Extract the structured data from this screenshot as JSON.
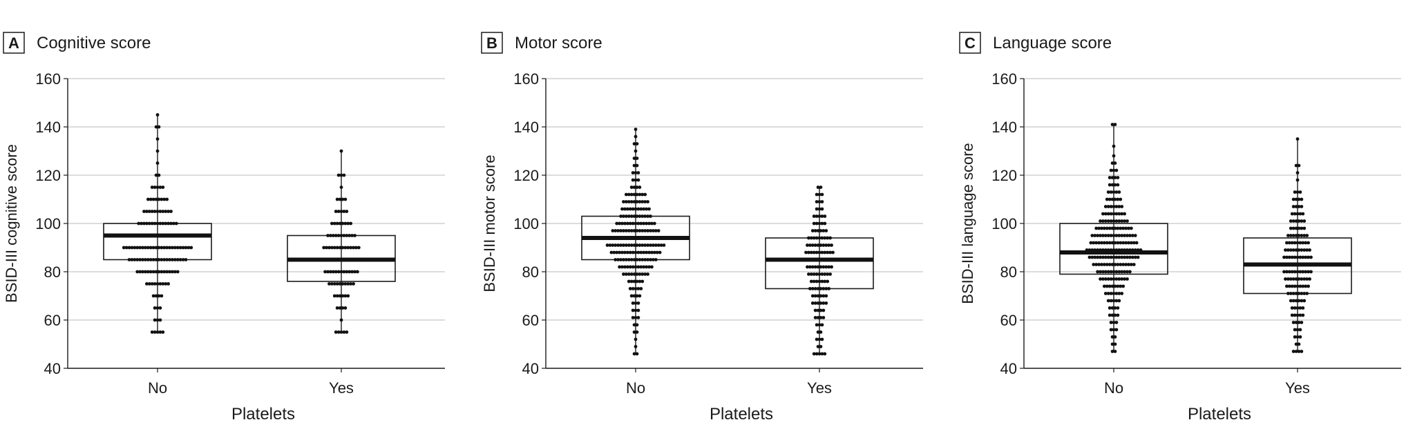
{
  "chart_data": [
    {
      "type": "box-dot",
      "panel_letter": "A",
      "title": "Cognitive score",
      "xlabel": "Platelets",
      "ylabel": "BSID-III cognitive score",
      "categories": [
        "No",
        "Yes"
      ],
      "ylim": [
        40,
        160
      ],
      "yticks": [
        40,
        60,
        80,
        100,
        120,
        140,
        160
      ],
      "grid": true,
      "boxes": [
        {
          "category": "No",
          "whisker_low": 55,
          "q1": 85,
          "median": 95,
          "q3": 100,
          "whisker_high": 145
        },
        {
          "category": "Yes",
          "whisker_low": 55,
          "q1": 76,
          "median": 85,
          "q3": 95,
          "whisker_high": 130
        }
      ],
      "distributions": [
        {
          "category": "No",
          "bins": [
            [
              55,
              5
            ],
            [
              60,
              3
            ],
            [
              65,
              3
            ],
            [
              70,
              4
            ],
            [
              75,
              9
            ],
            [
              80,
              16
            ],
            [
              85,
              22
            ],
            [
              90,
              26
            ],
            [
              95,
              23
            ],
            [
              100,
              15
            ],
            [
              105,
              11
            ],
            [
              110,
              8
            ],
            [
              115,
              5
            ],
            [
              120,
              2
            ],
            [
              125,
              1
            ],
            [
              130,
              1
            ],
            [
              135,
              1
            ],
            [
              140,
              2
            ],
            [
              145,
              1
            ]
          ]
        },
        {
          "category": "Yes",
          "bins": [
            [
              55,
              5
            ],
            [
              60,
              1
            ],
            [
              65,
              4
            ],
            [
              70,
              6
            ],
            [
              75,
              10
            ],
            [
              80,
              13
            ],
            [
              85,
              18
            ],
            [
              90,
              14
            ],
            [
              95,
              11
            ],
            [
              100,
              8
            ],
            [
              105,
              5
            ],
            [
              110,
              4
            ],
            [
              115,
              1
            ],
            [
              120,
              3
            ],
            [
              130,
              1
            ]
          ]
        }
      ]
    },
    {
      "type": "box-dot",
      "panel_letter": "B",
      "title": "Motor score",
      "xlabel": "Platelets",
      "ylabel": "BSID-III motor score",
      "categories": [
        "No",
        "Yes"
      ],
      "ylim": [
        40,
        160
      ],
      "yticks": [
        40,
        60,
        80,
        100,
        120,
        140,
        160
      ],
      "grid": true,
      "boxes": [
        {
          "category": "No",
          "whisker_low": 46,
          "q1": 85,
          "median": 94,
          "q3": 103,
          "whisker_high": 139
        },
        {
          "category": "Yes",
          "whisker_low": 46,
          "q1": 73,
          "median": 85,
          "q3": 94,
          "whisker_high": 115
        }
      ],
      "distributions": [
        {
          "category": "No",
          "bins": [
            [
              46,
              2
            ],
            [
              49,
              1
            ],
            [
              52,
              1
            ],
            [
              55,
              2
            ],
            [
              58,
              2
            ],
            [
              61,
              3
            ],
            [
              64,
              3
            ],
            [
              67,
              3
            ],
            [
              70,
              4
            ],
            [
              73,
              5
            ],
            [
              76,
              6
            ],
            [
              79,
              10
            ],
            [
              82,
              13
            ],
            [
              85,
              16
            ],
            [
              88,
              19
            ],
            [
              91,
              22
            ],
            [
              94,
              20
            ],
            [
              97,
              18
            ],
            [
              100,
              15
            ],
            [
              103,
              12
            ],
            [
              106,
              11
            ],
            [
              109,
              10
            ],
            [
              112,
              8
            ],
            [
              115,
              4
            ],
            [
              118,
              3
            ],
            [
              121,
              3
            ],
            [
              124,
              2
            ],
            [
              127,
              2
            ],
            [
              130,
              1
            ],
            [
              133,
              2
            ],
            [
              136,
              1
            ],
            [
              139,
              1
            ]
          ]
        },
        {
          "category": "Yes",
          "bins": [
            [
              46,
              5
            ],
            [
              49,
              2
            ],
            [
              52,
              3
            ],
            [
              55,
              2
            ],
            [
              58,
              3
            ],
            [
              61,
              4
            ],
            [
              64,
              4
            ],
            [
              67,
              6
            ],
            [
              70,
              6
            ],
            [
              73,
              8
            ],
            [
              76,
              7
            ],
            [
              79,
              9
            ],
            [
              82,
              10
            ],
            [
              85,
              12
            ],
            [
              88,
              11
            ],
            [
              91,
              10
            ],
            [
              94,
              9
            ],
            [
              97,
              6
            ],
            [
              100,
              5
            ],
            [
              103,
              5
            ],
            [
              106,
              3
            ],
            [
              109,
              3
            ],
            [
              112,
              3
            ],
            [
              115,
              2
            ]
          ]
        }
      ]
    },
    {
      "type": "box-dot",
      "panel_letter": "C",
      "title": "Language score",
      "xlabel": "Platelets",
      "ylabel": "BSID-III language score",
      "categories": [
        "No",
        "Yes"
      ],
      "ylim": [
        40,
        160
      ],
      "yticks": [
        40,
        60,
        80,
        100,
        120,
        140,
        160
      ],
      "grid": true,
      "boxes": [
        {
          "category": "No",
          "whisker_low": 47,
          "q1": 79,
          "median": 88,
          "q3": 100,
          "whisker_high": 141
        },
        {
          "category": "Yes",
          "whisker_low": 47,
          "q1": 71,
          "median": 83,
          "q3": 94,
          "whisker_high": 135
        }
      ],
      "distributions": [
        {
          "category": "No",
          "bins": [
            [
              47,
              2
            ],
            [
              50,
              2
            ],
            [
              53,
              2
            ],
            [
              56,
              3
            ],
            [
              59,
              3
            ],
            [
              62,
              4
            ],
            [
              65,
              4
            ],
            [
              68,
              5
            ],
            [
              71,
              7
            ],
            [
              74,
              8
            ],
            [
              77,
              11
            ],
            [
              80,
              13
            ],
            [
              83,
              16
            ],
            [
              86,
              19
            ],
            [
              89,
              21
            ],
            [
              92,
              18
            ],
            [
              95,
              17
            ],
            [
              98,
              14
            ],
            [
              101,
              11
            ],
            [
              104,
              9
            ],
            [
              107,
              7
            ],
            [
              110,
              6
            ],
            [
              113,
              5
            ],
            [
              116,
              4
            ],
            [
              119,
              4
            ],
            [
              122,
              3
            ],
            [
              125,
              2
            ],
            [
              128,
              1
            ],
            [
              132,
              1
            ],
            [
              141,
              2
            ]
          ]
        },
        {
          "category": "Yes",
          "bins": [
            [
              47,
              4
            ],
            [
              50,
              2
            ],
            [
              53,
              3
            ],
            [
              56,
              3
            ],
            [
              59,
              4
            ],
            [
              62,
              5
            ],
            [
              65,
              5
            ],
            [
              68,
              6
            ],
            [
              71,
              8
            ],
            [
              74,
              9
            ],
            [
              77,
              10
            ],
            [
              80,
              11
            ],
            [
              83,
              12
            ],
            [
              86,
              11
            ],
            [
              89,
              10
            ],
            [
              92,
              9
            ],
            [
              95,
              8
            ],
            [
              98,
              6
            ],
            [
              101,
              6
            ],
            [
              104,
              5
            ],
            [
              107,
              4
            ],
            [
              110,
              4
            ],
            [
              113,
              3
            ],
            [
              118,
              1
            ],
            [
              121,
              1
            ],
            [
              124,
              2
            ],
            [
              135,
              1
            ]
          ]
        }
      ]
    }
  ]
}
